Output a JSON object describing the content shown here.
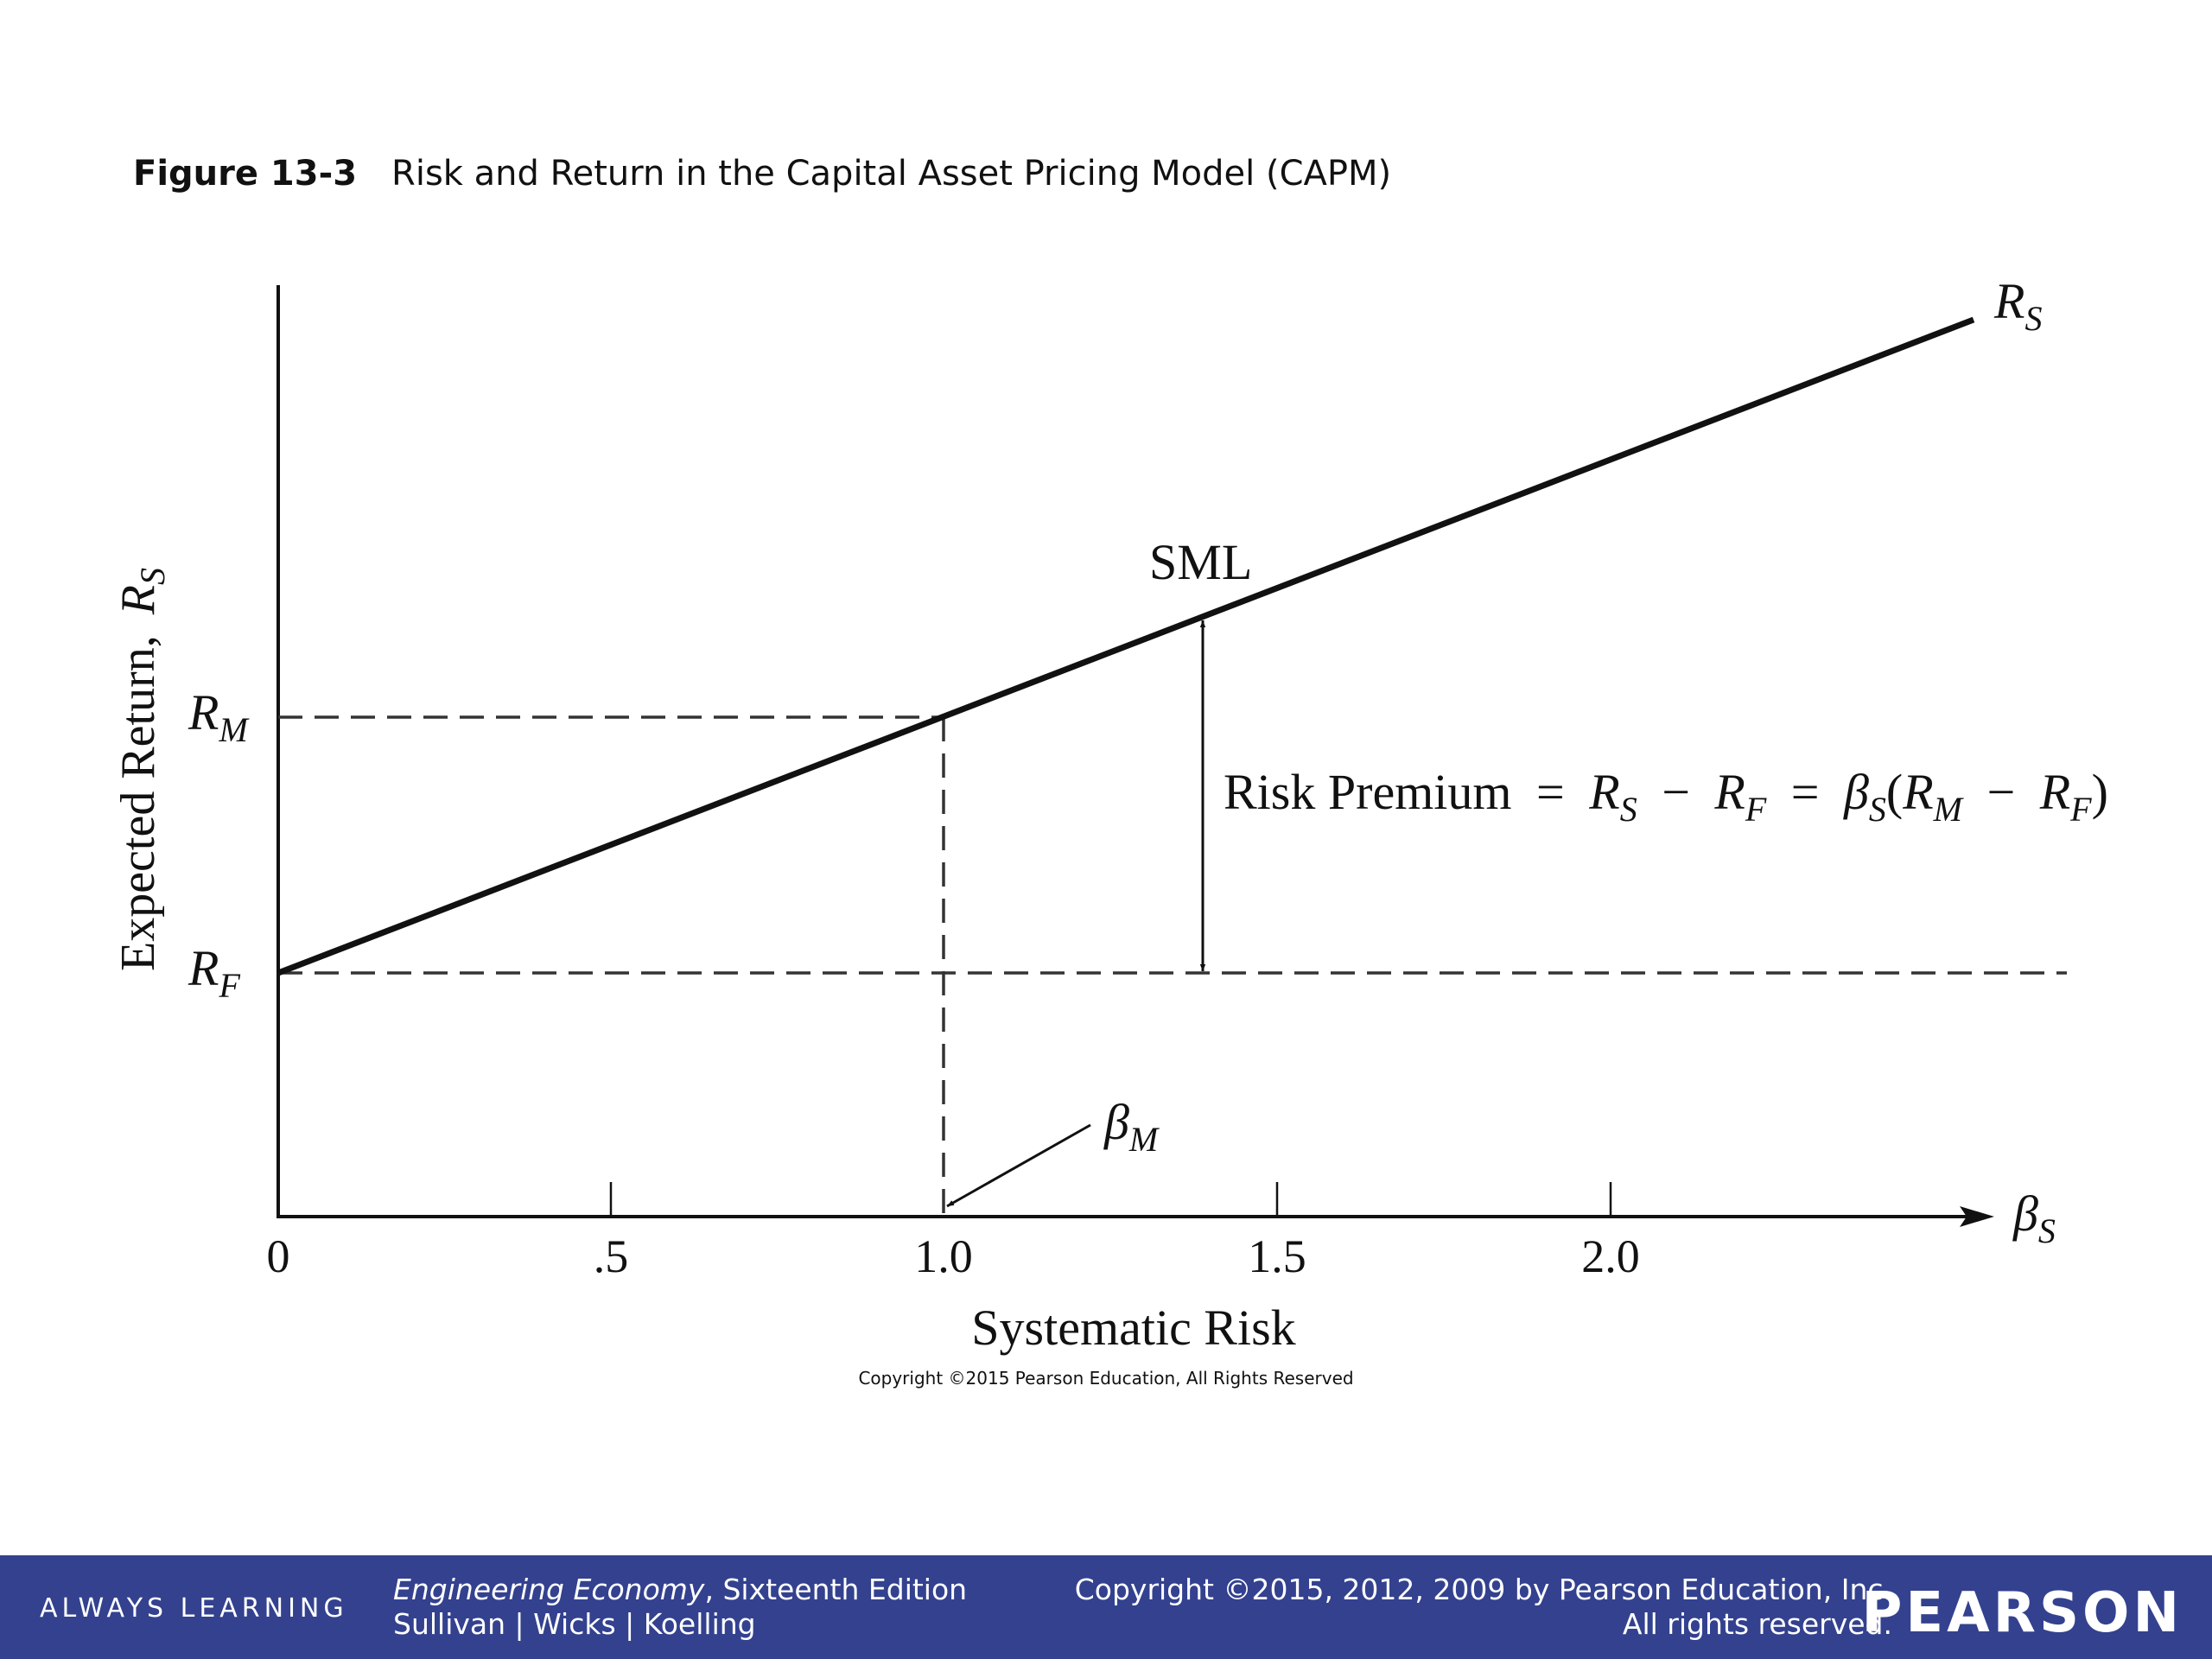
{
  "figure": {
    "number": "Figure 13-3",
    "title": "Risk and Return in the Capital Asset Pricing Model (CAPM)"
  },
  "diagram": {
    "y_axis_label": "Expected Return,",
    "y_axis_symbol": "R",
    "y_axis_symbol_sub": "S",
    "x_axis_label": "Systematic Risk",
    "x_axis_symbol": "β",
    "x_axis_symbol_sub": "S",
    "x_ticks": [
      "0",
      ".5",
      "1.0",
      "1.5",
      "2.0"
    ],
    "rm_label": "R",
    "rm_sub": "M",
    "rf_label": "R",
    "rf_sub": "F",
    "line_end_label": "R",
    "line_end_sub": "S",
    "sml_label": "SML",
    "beta_m_label": "β",
    "beta_m_sub": "M",
    "risk_premium": {
      "text": "Risk Premium",
      "eq": "=",
      "minus": "−",
      "beta": "β",
      "sub_s": "S",
      "sub_m": "M",
      "sub_f": "F",
      "r": "R",
      "open": "(",
      "close": ")"
    },
    "copyright": "Copyright ©2015 Pearson Education, All Rights Reserved"
  },
  "footer": {
    "always_learning": "ALWAYS LEARNING",
    "book_title": "Engineering Economy",
    "book_edition": ", Sixteenth Edition",
    "authors": "Sullivan | Wicks | Koelling",
    "copyright_line1": "Copyright ©2015, 2012, 2009 by Pearson Education, Inc.",
    "copyright_line2": "All rights reserved.",
    "logo": "PEARSON"
  },
  "colors": {
    "footer_bg": "#33418f",
    "ink": "#111111"
  }
}
